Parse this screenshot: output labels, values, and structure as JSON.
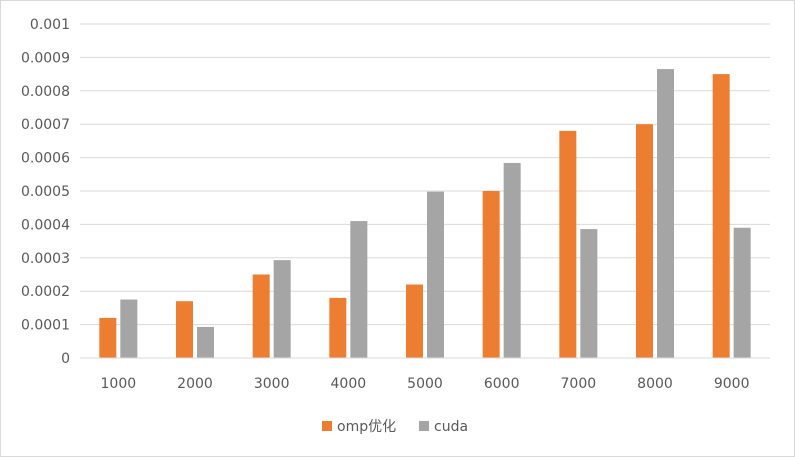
{
  "chart_data": {
    "type": "bar",
    "title": "",
    "xlabel": "",
    "ylabel": "",
    "categories": [
      "1000",
      "2000",
      "3000",
      "4000",
      "5000",
      "6000",
      "7000",
      "8000",
      "9000"
    ],
    "series": [
      {
        "name": "omp优化",
        "color": "#ed7d31",
        "values": [
          0.00012,
          0.00017,
          0.00025,
          0.00018,
          0.00022,
          0.0005,
          0.00068,
          0.0007,
          0.00085
        ]
      },
      {
        "name": "cuda",
        "color": "#a5a5a5",
        "values": [
          0.000175,
          9.3e-05,
          0.000293,
          0.00041,
          0.000498,
          0.000584,
          0.000386,
          0.000865,
          0.00039
        ]
      }
    ],
    "ylim": [
      0,
      0.001
    ],
    "yticks": [
      "0",
      "0.0001",
      "0.0002",
      "0.0003",
      "0.0004",
      "0.0005",
      "0.0006",
      "0.0007",
      "0.0008",
      "0.0009",
      "0.001"
    ],
    "grid": true,
    "legend_position": "bottom"
  }
}
